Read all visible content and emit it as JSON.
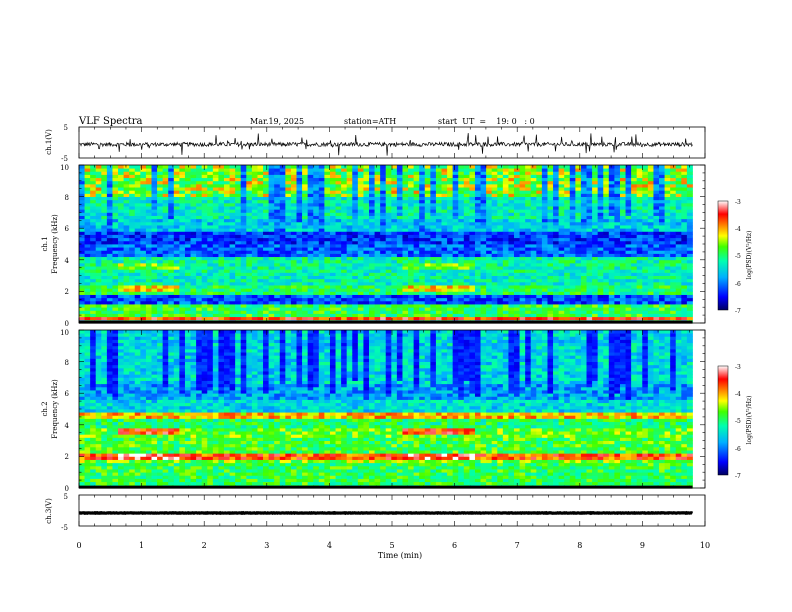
{
  "header": {
    "title": "VLF  Spectra",
    "date": "Mar.19, 2025",
    "station": "station=ATH",
    "start_ut": "start  UT  =    19: 0   : 0"
  },
  "chart_data": [
    {
      "type": "line",
      "panel": "ch1-waveform",
      "ylabel": "ch.1(V)",
      "ylim": [
        -5,
        5
      ],
      "yticks": [
        "5",
        "-5"
      ],
      "xlim": [
        0,
        10
      ],
      "x_end": 9.8,
      "baseline": -0.6
    },
    {
      "type": "heatmap",
      "panel": "ch1-spectrogram",
      "ylabel_lines": [
        "ch.1",
        "Frequency (kHz)"
      ],
      "ylim": [
        0,
        10
      ],
      "yticks": [
        "0",
        "2",
        "4",
        "6",
        "8",
        "10"
      ],
      "xlim": [
        0,
        10
      ],
      "x_end": 9.8,
      "bands": [
        {
          "f": [
            0.0,
            0.3
          ],
          "level": -5.4
        },
        {
          "f": [
            0.3,
            0.5
          ],
          "level": -3.6
        },
        {
          "f": [
            0.5,
            1.2
          ],
          "level": -4.9
        },
        {
          "f": [
            1.2,
            1.8
          ],
          "level": -6.2
        },
        {
          "f": [
            1.8,
            2.5
          ],
          "level": -5.0
        },
        {
          "f": [
            2.5,
            3.3
          ],
          "level": -5.3
        },
        {
          "f": [
            3.3,
            4.2
          ],
          "level": -5.2
        },
        {
          "f": [
            4.2,
            5.0
          ],
          "level": -6.1
        },
        {
          "f": [
            5.0,
            5.8
          ],
          "level": -6.3
        },
        {
          "f": [
            5.8,
            6.6
          ],
          "level": -5.6
        },
        {
          "f": [
            6.6,
            8.0
          ],
          "level": -5.3
        },
        {
          "f": [
            8.0,
            10.0
          ],
          "level": -4.8
        }
      ],
      "highlights": [
        {
          "t": [
            0.6,
            1.6
          ],
          "f": [
            2.1,
            2.4
          ],
          "level": -4.2
        },
        {
          "t": [
            5.2,
            6.3
          ],
          "f": [
            2.1,
            2.4
          ],
          "level": -4.2
        },
        {
          "t": [
            0.6,
            1.6
          ],
          "f": [
            3.4,
            3.7
          ],
          "level": -4.6
        },
        {
          "t": [
            5.2,
            6.3
          ],
          "f": [
            3.4,
            3.7
          ],
          "level": -4.6
        }
      ],
      "colorbar": {
        "label": "log(PSD)(V²/Hz)",
        "range": [
          -7,
          -3
        ],
        "ticks": [
          "-3",
          "-4",
          "-5",
          "-6",
          "-7"
        ]
      }
    },
    {
      "type": "heatmap",
      "panel": "ch2-spectrogram",
      "ylabel_lines": [
        "ch.2",
        "Frequency (kHz)"
      ],
      "ylim": [
        0,
        10
      ],
      "yticks": [
        "0",
        "2",
        "4",
        "6",
        "8",
        "10"
      ],
      "xlim": [
        0,
        10
      ],
      "x_end": 9.8,
      "bands": [
        {
          "f": [
            0.0,
            0.3
          ],
          "level": -5.0
        },
        {
          "f": [
            0.3,
            1.6
          ],
          "level": -4.9
        },
        {
          "f": [
            1.6,
            1.9
          ],
          "level": -4.6
        },
        {
          "f": [
            1.9,
            2.2
          ],
          "level": -3.7
        },
        {
          "f": [
            2.2,
            3.2
          ],
          "level": -4.8
        },
        {
          "f": [
            3.2,
            3.8
          ],
          "level": -4.7
        },
        {
          "f": [
            3.8,
            4.4
          ],
          "level": -5.0
        },
        {
          "f": [
            4.4,
            4.8
          ],
          "level": -4.1
        },
        {
          "f": [
            4.8,
            5.6
          ],
          "level": -5.5
        },
        {
          "f": [
            5.6,
            6.6
          ],
          "level": -5.8
        },
        {
          "f": [
            6.6,
            10.0
          ],
          "level": -5.5
        }
      ],
      "highlights": [
        {
          "t": [
            0.6,
            1.6
          ],
          "f": [
            1.9,
            2.2
          ],
          "level": -3.3
        },
        {
          "t": [
            5.2,
            6.3
          ],
          "f": [
            1.9,
            2.2
          ],
          "level": -3.3
        },
        {
          "t": [
            0.6,
            1.6
          ],
          "f": [
            3.4,
            3.7
          ],
          "level": -3.6
        },
        {
          "t": [
            5.2,
            6.3
          ],
          "f": [
            3.4,
            3.7
          ],
          "level": -3.6
        }
      ],
      "colorbar": {
        "label": "log(PSD)(V²/Hz)",
        "range": [
          -7,
          -3
        ],
        "ticks": [
          "-3",
          "-4",
          "-5",
          "-6",
          "-7"
        ]
      }
    },
    {
      "type": "line",
      "panel": "ch3-waveform",
      "ylabel": "ch.3(V)",
      "ylim": [
        -5,
        5
      ],
      "yticks": [
        "5",
        "-5"
      ],
      "xlim": [
        0,
        10
      ],
      "x_end": 9.8,
      "baseline": -0.8,
      "xlabel": "Time  (min)",
      "xticks": [
        "0",
        "1",
        "2",
        "3",
        "4",
        "5",
        "6",
        "7",
        "8",
        "9",
        "10"
      ]
    }
  ],
  "colors": {
    "colormap": [
      "#000060",
      "#0000ff",
      "#00b0ff",
      "#00ffb0",
      "#40ff00",
      "#ffff00",
      "#ff8000",
      "#ff0000",
      "#ffffff"
    ]
  }
}
